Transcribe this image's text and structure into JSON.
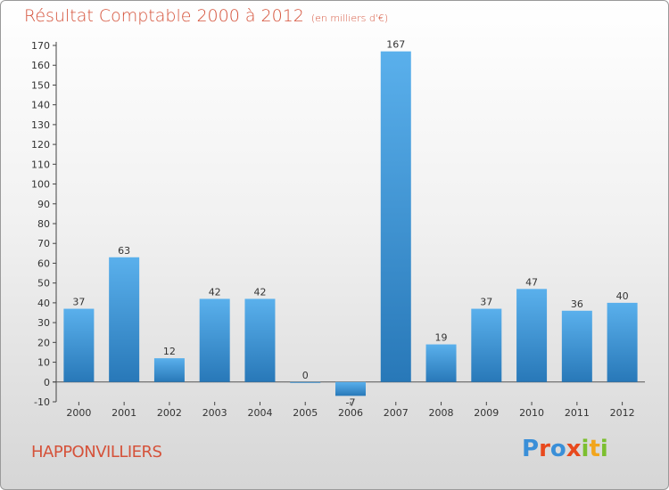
{
  "header": {
    "title": "Résultat Comptable 2000 à 2012",
    "unit": "(en milliers d'€)"
  },
  "footer": {
    "commune": "HAPPONVILLIERS",
    "logo_text": "Proxiti",
    "logo_colors": [
      "#3a8fd8",
      "#e8491d",
      "#3a8fd8",
      "#e8491d",
      "#7cbf2f",
      "#f2a51c",
      "#7cbf2f"
    ]
  },
  "colors": {
    "bar_light": "#5ab0ec",
    "bar_dark": "#2878b8",
    "title": "#d5523a"
  },
  "chart_data": {
    "type": "bar",
    "title": "Résultat Comptable 2000 à 2012",
    "ylabel": "en milliers d'€",
    "xlabel": "",
    "categories": [
      "2000",
      "2001",
      "2002",
      "2003",
      "2004",
      "2005",
      "2006",
      "2007",
      "2008",
      "2009",
      "2010",
      "2011",
      "2012"
    ],
    "values": [
      37,
      63,
      12,
      42,
      42,
      0,
      -7,
      167,
      19,
      37,
      47,
      36,
      40
    ],
    "data_labels": [
      "37",
      "63",
      "12",
      "42",
      "42",
      "0",
      "-7",
      "167",
      "19",
      "37",
      "47",
      "36",
      "40"
    ],
    "ylim": [
      -10,
      170
    ],
    "yticks": [
      -10,
      0,
      10,
      20,
      30,
      40,
      50,
      60,
      70,
      80,
      90,
      100,
      110,
      120,
      130,
      140,
      150,
      160,
      170
    ],
    "grid": false,
    "legend": "none"
  }
}
